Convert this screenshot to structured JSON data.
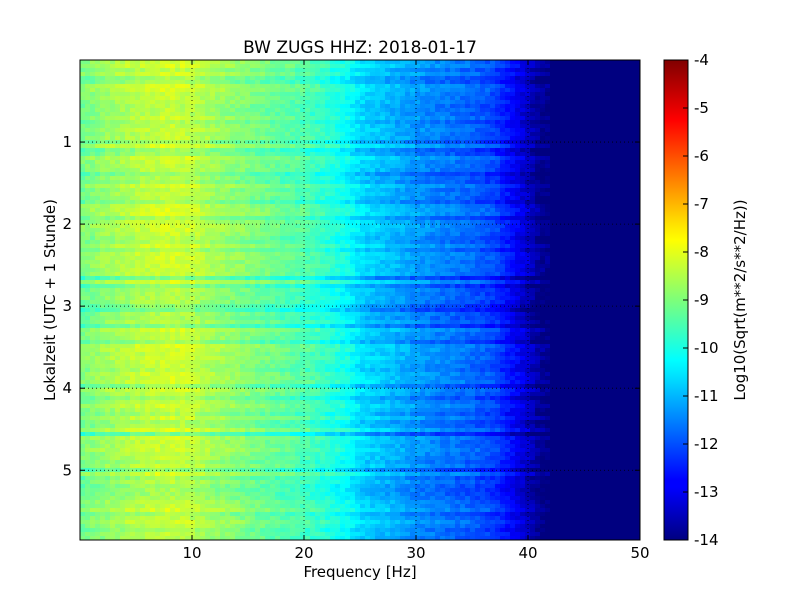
{
  "chart_data": {
    "type": "heatmap",
    "title": "BW ZUGS HHZ: 2018-01-17",
    "xlabel": "Frequency [Hz]",
    "ylabel": "Lokalzeit (UTC + 1 Stunde)",
    "xlim": [
      0,
      50
    ],
    "ylim": [
      5.85,
      0
    ],
    "x_ticks": [
      "10",
      "20",
      "30",
      "40",
      "50"
    ],
    "x_tick_values": [
      10,
      20,
      30,
      40,
      50
    ],
    "y_ticks": [
      "1",
      "2",
      "3",
      "4",
      "5"
    ],
    "y_tick_values": [
      1,
      2,
      3,
      4,
      5
    ],
    "grid": true,
    "colorbar": {
      "label": "Log10(Sqrt(m**2/s**2/Hz))",
      "min": -14,
      "max": -4,
      "ticks": [
        "-4",
        "-5",
        "-6",
        "-7",
        "-8",
        "-9",
        "-10",
        "-11",
        "-12",
        "-13",
        "-14"
      ],
      "tick_values": [
        -4,
        -5,
        -6,
        -7,
        -8,
        -9,
        -10,
        -11,
        -12,
        -13,
        -14
      ],
      "colormap": "jet"
    },
    "spectrum_profile": {
      "frequency_hz": [
        0,
        2,
        5,
        8,
        10,
        12,
        15,
        18,
        20,
        22,
        24,
        25,
        28,
        30,
        32,
        35,
        37,
        38,
        39,
        40,
        41,
        42,
        45,
        50
      ],
      "log10_psd": [
        -9.1,
        -8.8,
        -8.5,
        -8.3,
        -8.4,
        -8.7,
        -9.0,
        -9.3,
        -9.5,
        -9.8,
        -10.2,
        -10.6,
        -11.0,
        -11.3,
        -11.5,
        -11.8,
        -12.1,
        -12.5,
        -12.9,
        -13.3,
        -13.8,
        -14.0,
        -14.0,
        -14.0
      ]
    }
  }
}
